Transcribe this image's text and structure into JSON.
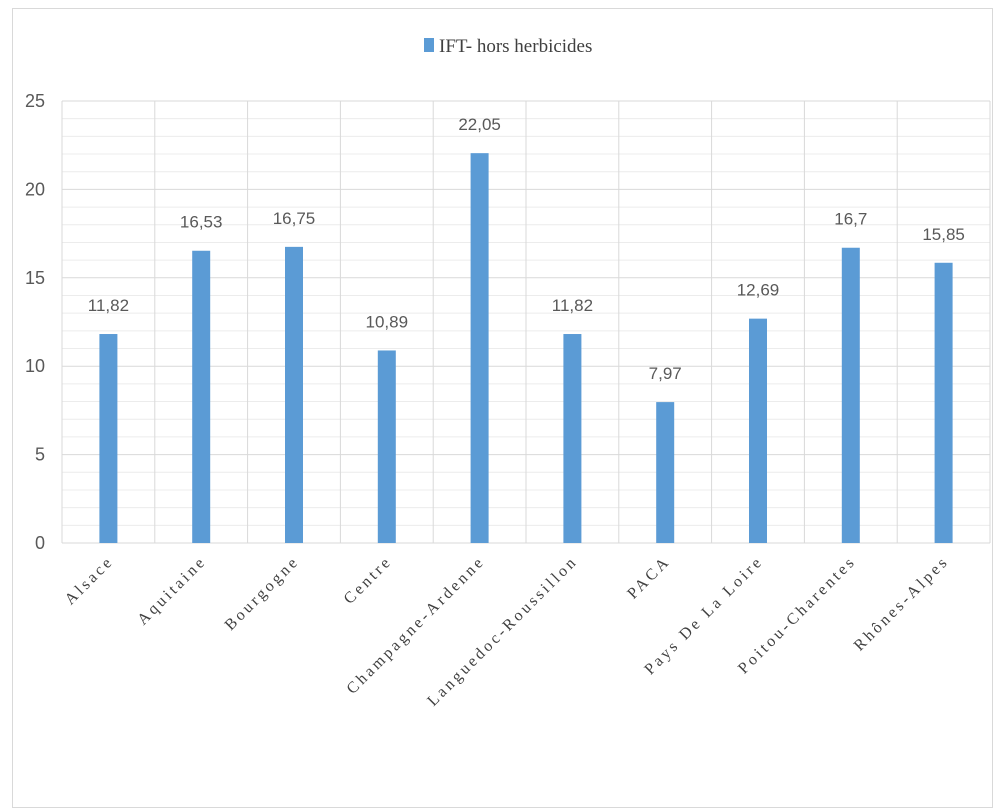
{
  "chart_data": {
    "type": "bar",
    "categories": [
      "Alsace",
      "Aquitaine",
      "Bourgogne",
      "Centre",
      "Champagne-Ardenne",
      "Languedoc-Roussillon",
      "PACA",
      "Pays De La Loire",
      "Poitou-Charentes",
      "Rhônes-Alpes"
    ],
    "series": [
      {
        "name": "IFT- hors herbicides",
        "values": [
          11.82,
          16.53,
          16.75,
          10.89,
          22.05,
          11.82,
          7.97,
          12.69,
          16.7,
          15.85
        ],
        "data_labels": [
          "11,82",
          "16,53",
          "16,75",
          "10,89",
          "22,05",
          "11,82",
          "7,97",
          "12,69",
          "16,7",
          "15,85"
        ],
        "color": "#5b9bd5"
      }
    ],
    "title": "",
    "xlabel": "",
    "ylabel": "",
    "ylim": [
      0,
      25
    ],
    "yticks": [
      0,
      5,
      10,
      15,
      20,
      25
    ],
    "ytick_labels": [
      "0",
      "5",
      "10",
      "15",
      "20",
      "25"
    ],
    "minor_step": 1,
    "grid": true,
    "legend_position": "top"
  }
}
